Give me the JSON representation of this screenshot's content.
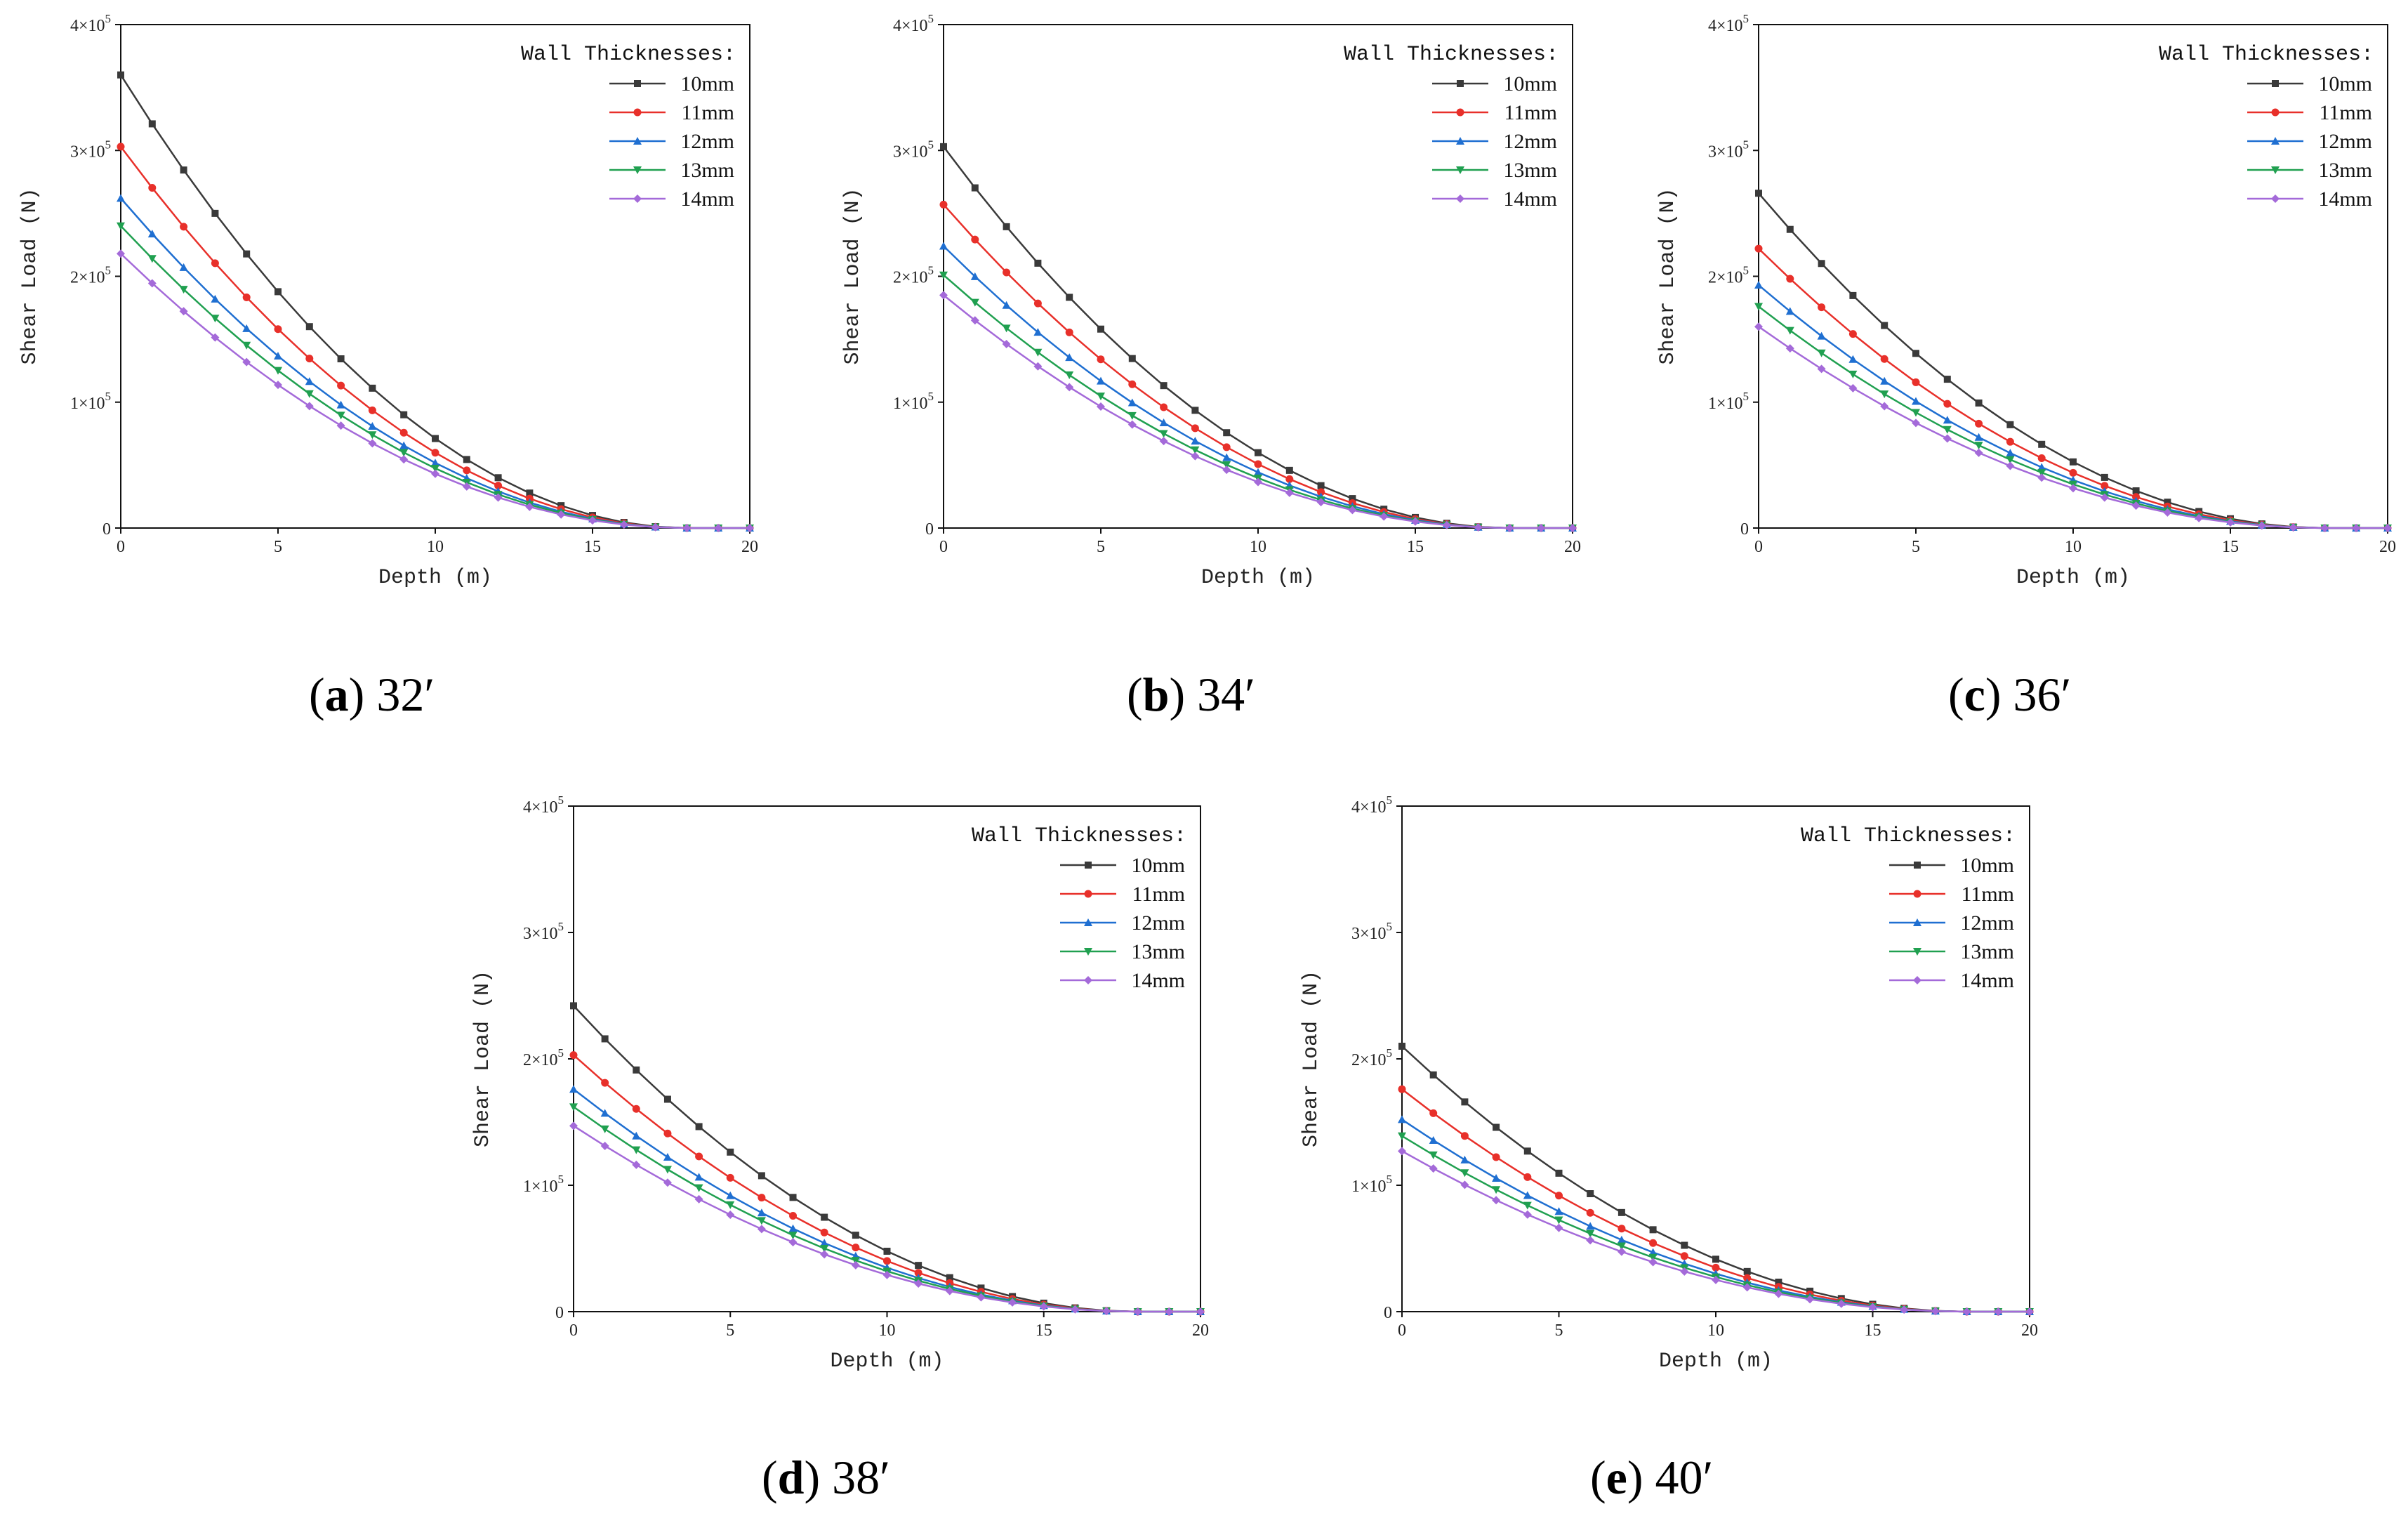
{
  "figure": {
    "captions": [
      {
        "letter": "a",
        "prefix": "(",
        "suffix": ")",
        "text": " 32′"
      },
      {
        "letter": "b",
        "prefix": "(",
        "suffix": ")",
        "text": " 34′"
      },
      {
        "letter": "c",
        "prefix": "(",
        "suffix": ")",
        "text": " 36′"
      },
      {
        "letter": "d",
        "prefix": "(",
        "suffix": ")",
        "text": " 38′"
      },
      {
        "letter": "e",
        "prefix": "(",
        "suffix": ")",
        "text": " 40′"
      }
    ]
  },
  "colors": {
    "10mm": "#3a3a3a",
    "11mm": "#e8302a",
    "12mm": "#1f6fd1",
    "13mm": "#20a050",
    "14mm": "#a46ad9"
  },
  "chart_data": [
    {
      "type": "line",
      "panel": "a",
      "title": "",
      "xlabel": "Depth (m)",
      "ylabel": "Shear Load (N)",
      "xlim": [
        0,
        20
      ],
      "ylim": [
        0,
        400000
      ],
      "xticks": [
        "0",
        "5",
        "10",
        "15",
        "20"
      ],
      "yticks": [
        {
          "value": 0,
          "mantissa": "0",
          "exp": ""
        },
        {
          "value": 100000,
          "mantissa": "1×10",
          "exp": "5"
        },
        {
          "value": 200000,
          "mantissa": "2×10",
          "exp": "5"
        },
        {
          "value": 300000,
          "mantissa": "3×10",
          "exp": "5"
        },
        {
          "value": 400000,
          "mantissa": "4×10",
          "exp": "5"
        }
      ],
      "legend_title": "Wall Thicknesses:",
      "legend_position": "top-right",
      "x": [
        0,
        1,
        2,
        3,
        4,
        5,
        6,
        7,
        8,
        9,
        10,
        11,
        12,
        13,
        14,
        15,
        16,
        17,
        18,
        19,
        20
      ],
      "series": [
        {
          "name": "10mm",
          "marker": "square",
          "y0": 360000
        },
        {
          "name": "11mm",
          "marker": "circle",
          "y0": 303000
        },
        {
          "name": "12mm",
          "marker": "triangle-up",
          "y0": 262000
        },
        {
          "name": "13mm",
          "marker": "triangle-down",
          "y0": 240000
        },
        {
          "name": "14mm",
          "marker": "diamond",
          "y0": 218000
        }
      ]
    },
    {
      "type": "line",
      "panel": "b",
      "title": "",
      "xlabel": "Depth (m)",
      "ylabel": "Shear Load (N)",
      "xlim": [
        0,
        20
      ],
      "ylim": [
        0,
        400000
      ],
      "xticks": [
        "0",
        "5",
        "10",
        "15",
        "20"
      ],
      "yticks": [
        {
          "value": 0,
          "mantissa": "0",
          "exp": ""
        },
        {
          "value": 100000,
          "mantissa": "1×10",
          "exp": "5"
        },
        {
          "value": 200000,
          "mantissa": "2×10",
          "exp": "5"
        },
        {
          "value": 300000,
          "mantissa": "3×10",
          "exp": "5"
        },
        {
          "value": 400000,
          "mantissa": "4×10",
          "exp": "5"
        }
      ],
      "legend_title": "Wall Thicknesses:",
      "legend_position": "top-right",
      "x": [
        0,
        1,
        2,
        3,
        4,
        5,
        6,
        7,
        8,
        9,
        10,
        11,
        12,
        13,
        14,
        15,
        16,
        17,
        18,
        19,
        20
      ],
      "series": [
        {
          "name": "10mm",
          "marker": "square",
          "y0": 303000
        },
        {
          "name": "11mm",
          "marker": "circle",
          "y0": 257000
        },
        {
          "name": "12mm",
          "marker": "triangle-up",
          "y0": 224000
        },
        {
          "name": "13mm",
          "marker": "triangle-down",
          "y0": 201000
        },
        {
          "name": "14mm",
          "marker": "diamond",
          "y0": 185000
        }
      ]
    },
    {
      "type": "line",
      "panel": "c",
      "title": "",
      "xlabel": "Depth (m)",
      "ylabel": "Shear Load (N)",
      "xlim": [
        0,
        20
      ],
      "ylim": [
        0,
        400000
      ],
      "xticks": [
        "0",
        "5",
        "10",
        "15",
        "20"
      ],
      "yticks": [
        {
          "value": 0,
          "mantissa": "0",
          "exp": ""
        },
        {
          "value": 100000,
          "mantissa": "1×10",
          "exp": "5"
        },
        {
          "value": 200000,
          "mantissa": "2×10",
          "exp": "5"
        },
        {
          "value": 300000,
          "mantissa": "3×10",
          "exp": "5"
        },
        {
          "value": 400000,
          "mantissa": "4×10",
          "exp": "5"
        }
      ],
      "legend_title": "Wall Thicknesses:",
      "legend_position": "top-right",
      "x": [
        0,
        1,
        2,
        3,
        4,
        5,
        6,
        7,
        8,
        9,
        10,
        11,
        12,
        13,
        14,
        15,
        16,
        17,
        18,
        19,
        20
      ],
      "series": [
        {
          "name": "10mm",
          "marker": "square",
          "y0": 266000
        },
        {
          "name": "11mm",
          "marker": "circle",
          "y0": 222000
        },
        {
          "name": "12mm",
          "marker": "triangle-up",
          "y0": 193000
        },
        {
          "name": "13mm",
          "marker": "triangle-down",
          "y0": 176000
        },
        {
          "name": "14mm",
          "marker": "diamond",
          "y0": 160000
        }
      ]
    },
    {
      "type": "line",
      "panel": "d",
      "title": "",
      "xlabel": "Depth (m)",
      "ylabel": "Shear Load (N)",
      "xlim": [
        0,
        20
      ],
      "ylim": [
        0,
        400000
      ],
      "xticks": [
        "0",
        "5",
        "10",
        "15",
        "20"
      ],
      "yticks": [
        {
          "value": 0,
          "mantissa": "0",
          "exp": ""
        },
        {
          "value": 100000,
          "mantissa": "1×10",
          "exp": "5"
        },
        {
          "value": 200000,
          "mantissa": "2×10",
          "exp": "5"
        },
        {
          "value": 300000,
          "mantissa": "3×10",
          "exp": "5"
        },
        {
          "value": 400000,
          "mantissa": "4×10",
          "exp": "5"
        }
      ],
      "legend_title": "Wall Thicknesses:",
      "legend_position": "top-right",
      "x": [
        0,
        1,
        2,
        3,
        4,
        5,
        6,
        7,
        8,
        9,
        10,
        11,
        12,
        13,
        14,
        15,
        16,
        17,
        18,
        19,
        20
      ],
      "series": [
        {
          "name": "10mm",
          "marker": "square",
          "y0": 242000
        },
        {
          "name": "11mm",
          "marker": "circle",
          "y0": 203000
        },
        {
          "name": "12mm",
          "marker": "triangle-up",
          "y0": 176000
        },
        {
          "name": "13mm",
          "marker": "triangle-down",
          "y0": 162000
        },
        {
          "name": "14mm",
          "marker": "diamond",
          "y0": 147000
        }
      ]
    },
    {
      "type": "line",
      "panel": "e",
      "title": "",
      "xlabel": "Depth (m)",
      "ylabel": "Shear Load (N)",
      "xlim": [
        0,
        20
      ],
      "ylim": [
        0,
        400000
      ],
      "xticks": [
        "0",
        "5",
        "10",
        "15",
        "20"
      ],
      "yticks": [
        {
          "value": 0,
          "mantissa": "0",
          "exp": ""
        },
        {
          "value": 100000,
          "mantissa": "1×10",
          "exp": "5"
        },
        {
          "value": 200000,
          "mantissa": "2×10",
          "exp": "5"
        },
        {
          "value": 300000,
          "mantissa": "3×10",
          "exp": "5"
        },
        {
          "value": 400000,
          "mantissa": "4×10",
          "exp": "5"
        }
      ],
      "legend_title": "Wall Thicknesses:",
      "legend_position": "top-right",
      "x": [
        0,
        1,
        2,
        3,
        4,
        5,
        6,
        7,
        8,
        9,
        10,
        11,
        12,
        13,
        14,
        15,
        16,
        17,
        18,
        19,
        20
      ],
      "series": [
        {
          "name": "10mm",
          "marker": "square",
          "y0": 210000
        },
        {
          "name": "11mm",
          "marker": "circle",
          "y0": 176000
        },
        {
          "name": "12mm",
          "marker": "triangle-up",
          "y0": 152000
        },
        {
          "name": "13mm",
          "marker": "triangle-down",
          "y0": 139000
        },
        {
          "name": "14mm",
          "marker": "diamond",
          "y0": 127000
        }
      ],
      "curve_model": "y(x) = y0 * max(0, 1 - x/18)^2"
    }
  ]
}
